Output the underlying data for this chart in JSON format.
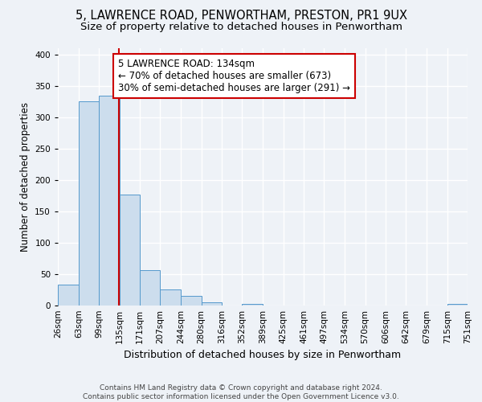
{
  "title": "5, LAWRENCE ROAD, PENWORTHAM, PRESTON, PR1 9UX",
  "subtitle": "Size of property relative to detached houses in Penwortham",
  "xlabel": "Distribution of detached houses by size in Penwortham",
  "ylabel": "Number of detached properties",
  "bin_edges": [
    26,
    63,
    99,
    135,
    171,
    207,
    244,
    280,
    316,
    352,
    389,
    425,
    461,
    497,
    534,
    570,
    606,
    642,
    679,
    715,
    751
  ],
  "bin_labels": [
    "26sqm",
    "63sqm",
    "99sqm",
    "135sqm",
    "171sqm",
    "207sqm",
    "244sqm",
    "280sqm",
    "316sqm",
    "352sqm",
    "389sqm",
    "425sqm",
    "461sqm",
    "497sqm",
    "534sqm",
    "570sqm",
    "606sqm",
    "642sqm",
    "679sqm",
    "715sqm",
    "751sqm"
  ],
  "bar_heights": [
    33,
    325,
    335,
    177,
    57,
    25,
    15,
    5,
    0,
    3,
    0,
    0,
    0,
    0,
    0,
    0,
    0,
    0,
    0,
    3
  ],
  "bar_color": "#ccdded",
  "bar_edge_color": "#5599cc",
  "vline_x": 134,
  "vline_color": "#cc0000",
  "annotation_text": "5 LAWRENCE ROAD: 134sqm\n← 70% of detached houses are smaller (673)\n30% of semi-detached houses are larger (291) →",
  "annotation_box_color": "#ffffff",
  "annotation_box_edge_color": "#cc0000",
  "annotation_fontsize": 8.5,
  "ylim": [
    0,
    410
  ],
  "background_color": "#eef2f7",
  "grid_color": "#ffffff",
  "title_fontsize": 10.5,
  "subtitle_fontsize": 9.5,
  "xlabel_fontsize": 9,
  "ylabel_fontsize": 8.5,
  "tick_fontsize": 7.5,
  "footer_text": "Contains HM Land Registry data © Crown copyright and database right 2024.\nContains public sector information licensed under the Open Government Licence v3.0.",
  "footer_fontsize": 6.5
}
